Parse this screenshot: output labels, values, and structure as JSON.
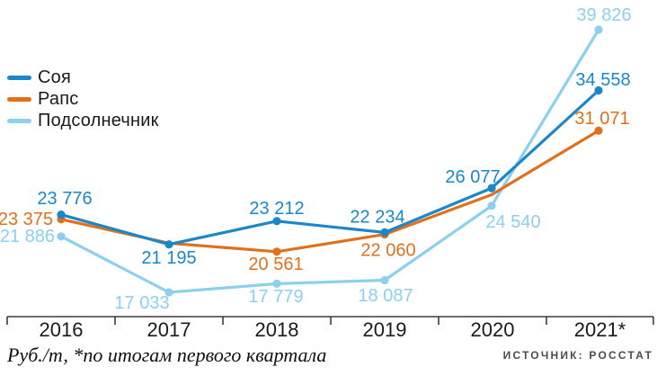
{
  "chart_data": {
    "type": "line",
    "title": "",
    "categories": [
      "2016",
      "2017",
      "2018",
      "2019",
      "2020",
      "2021*"
    ],
    "series": [
      {
        "name": "Соя",
        "color": "#1b87c9",
        "values": [
          23776,
          21195,
          23212,
          22234,
          26077,
          34558
        ],
        "labels": [
          "23 776",
          "21 195",
          "23 212",
          "22 234",
          "26 077",
          "34 558"
        ]
      },
      {
        "name": "Рапс",
        "color": "#e1701c",
        "values": [
          23375,
          21300,
          20561,
          22060,
          25500,
          31071
        ],
        "labels": [
          "23 375",
          null,
          "20 561",
          "22 060",
          null,
          "31 071"
        ]
      },
      {
        "name": "Подсолнечник",
        "color": "#8dcfef",
        "values": [
          21886,
          17033,
          17779,
          18087,
          24540,
          39826
        ],
        "labels": [
          "21 886",
          "17 033",
          "17 779",
          "18 087",
          "24 540",
          "39 826"
        ]
      }
    ],
    "units": "Руб./т",
    "ylim": [
      16500,
      40500
    ],
    "grid": false,
    "y_axis_visible": false,
    "legend_position": "top-left",
    "footnote": "Руб./т, *по итогам первого квартала",
    "source": "ИСТОЧНИК: РОССТАТ"
  },
  "colors": {
    "axis": "#3a3a3a",
    "year_text": "#1a1a1a",
    "background": "#ffffff"
  }
}
